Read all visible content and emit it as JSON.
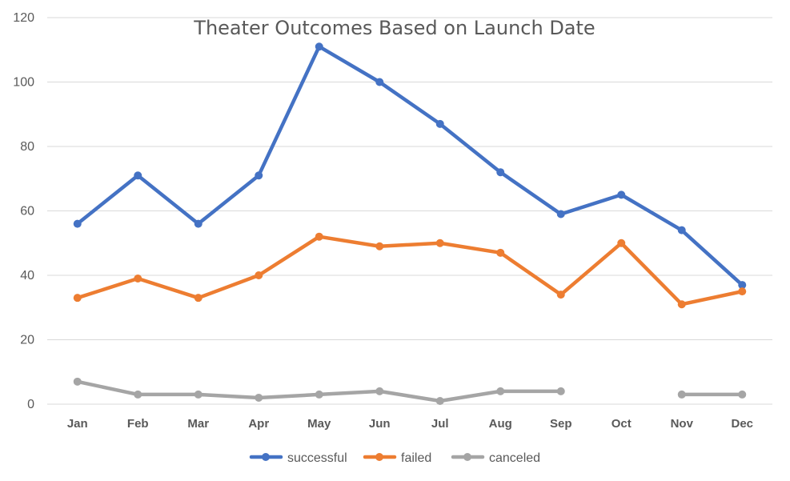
{
  "chart_data": {
    "type": "line",
    "title": "Theater Outcomes Based on Launch Date",
    "xlabel": "",
    "ylabel": "",
    "categories": [
      "Jan",
      "Feb",
      "Mar",
      "Apr",
      "May",
      "Jun",
      "Jul",
      "Aug",
      "Sep",
      "Oct",
      "Nov",
      "Dec"
    ],
    "ylim": [
      0,
      120
    ],
    "yticks": [
      0,
      20,
      40,
      60,
      80,
      100,
      120
    ],
    "grid": true,
    "legend_position": "bottom",
    "series": [
      {
        "name": "successful",
        "color": "#4472c4",
        "values": [
          56,
          71,
          56,
          71,
          111,
          100,
          87,
          72,
          59,
          65,
          54,
          37
        ]
      },
      {
        "name": "failed",
        "color": "#ed7d31",
        "values": [
          33,
          39,
          33,
          40,
          52,
          49,
          50,
          47,
          34,
          50,
          31,
          35
        ]
      },
      {
        "name": "canceled",
        "color": "#a5a5a5",
        "values": [
          7,
          3,
          3,
          2,
          3,
          4,
          1,
          4,
          4,
          null,
          3,
          3
        ]
      }
    ]
  }
}
